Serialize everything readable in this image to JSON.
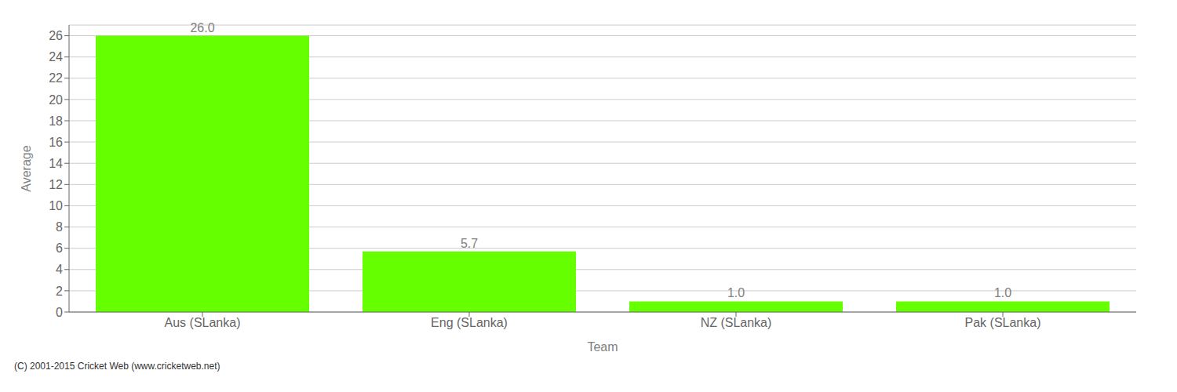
{
  "chart_data": {
    "type": "bar",
    "xlabel": "Team",
    "ylabel": "Average",
    "categories": [
      "Aus (SLanka)",
      "Eng (SLanka)",
      "NZ (SLanka)",
      "Pak (SLanka)"
    ],
    "values": [
      26.0,
      5.7,
      1.0,
      1.0
    ],
    "value_labels": [
      "26.0",
      "5.7",
      "1.0",
      "1.0"
    ],
    "data_labels": true,
    "color": "#66ff00",
    "ylim": [
      0,
      27
    ],
    "yticks": [
      0,
      2,
      4,
      6,
      8,
      10,
      12,
      14,
      16,
      18,
      20,
      22,
      24,
      26
    ],
    "grid": true,
    "annotations": [
      "(C) 2001-2015 Cricket Web (www.cricketweb.net)"
    ]
  }
}
